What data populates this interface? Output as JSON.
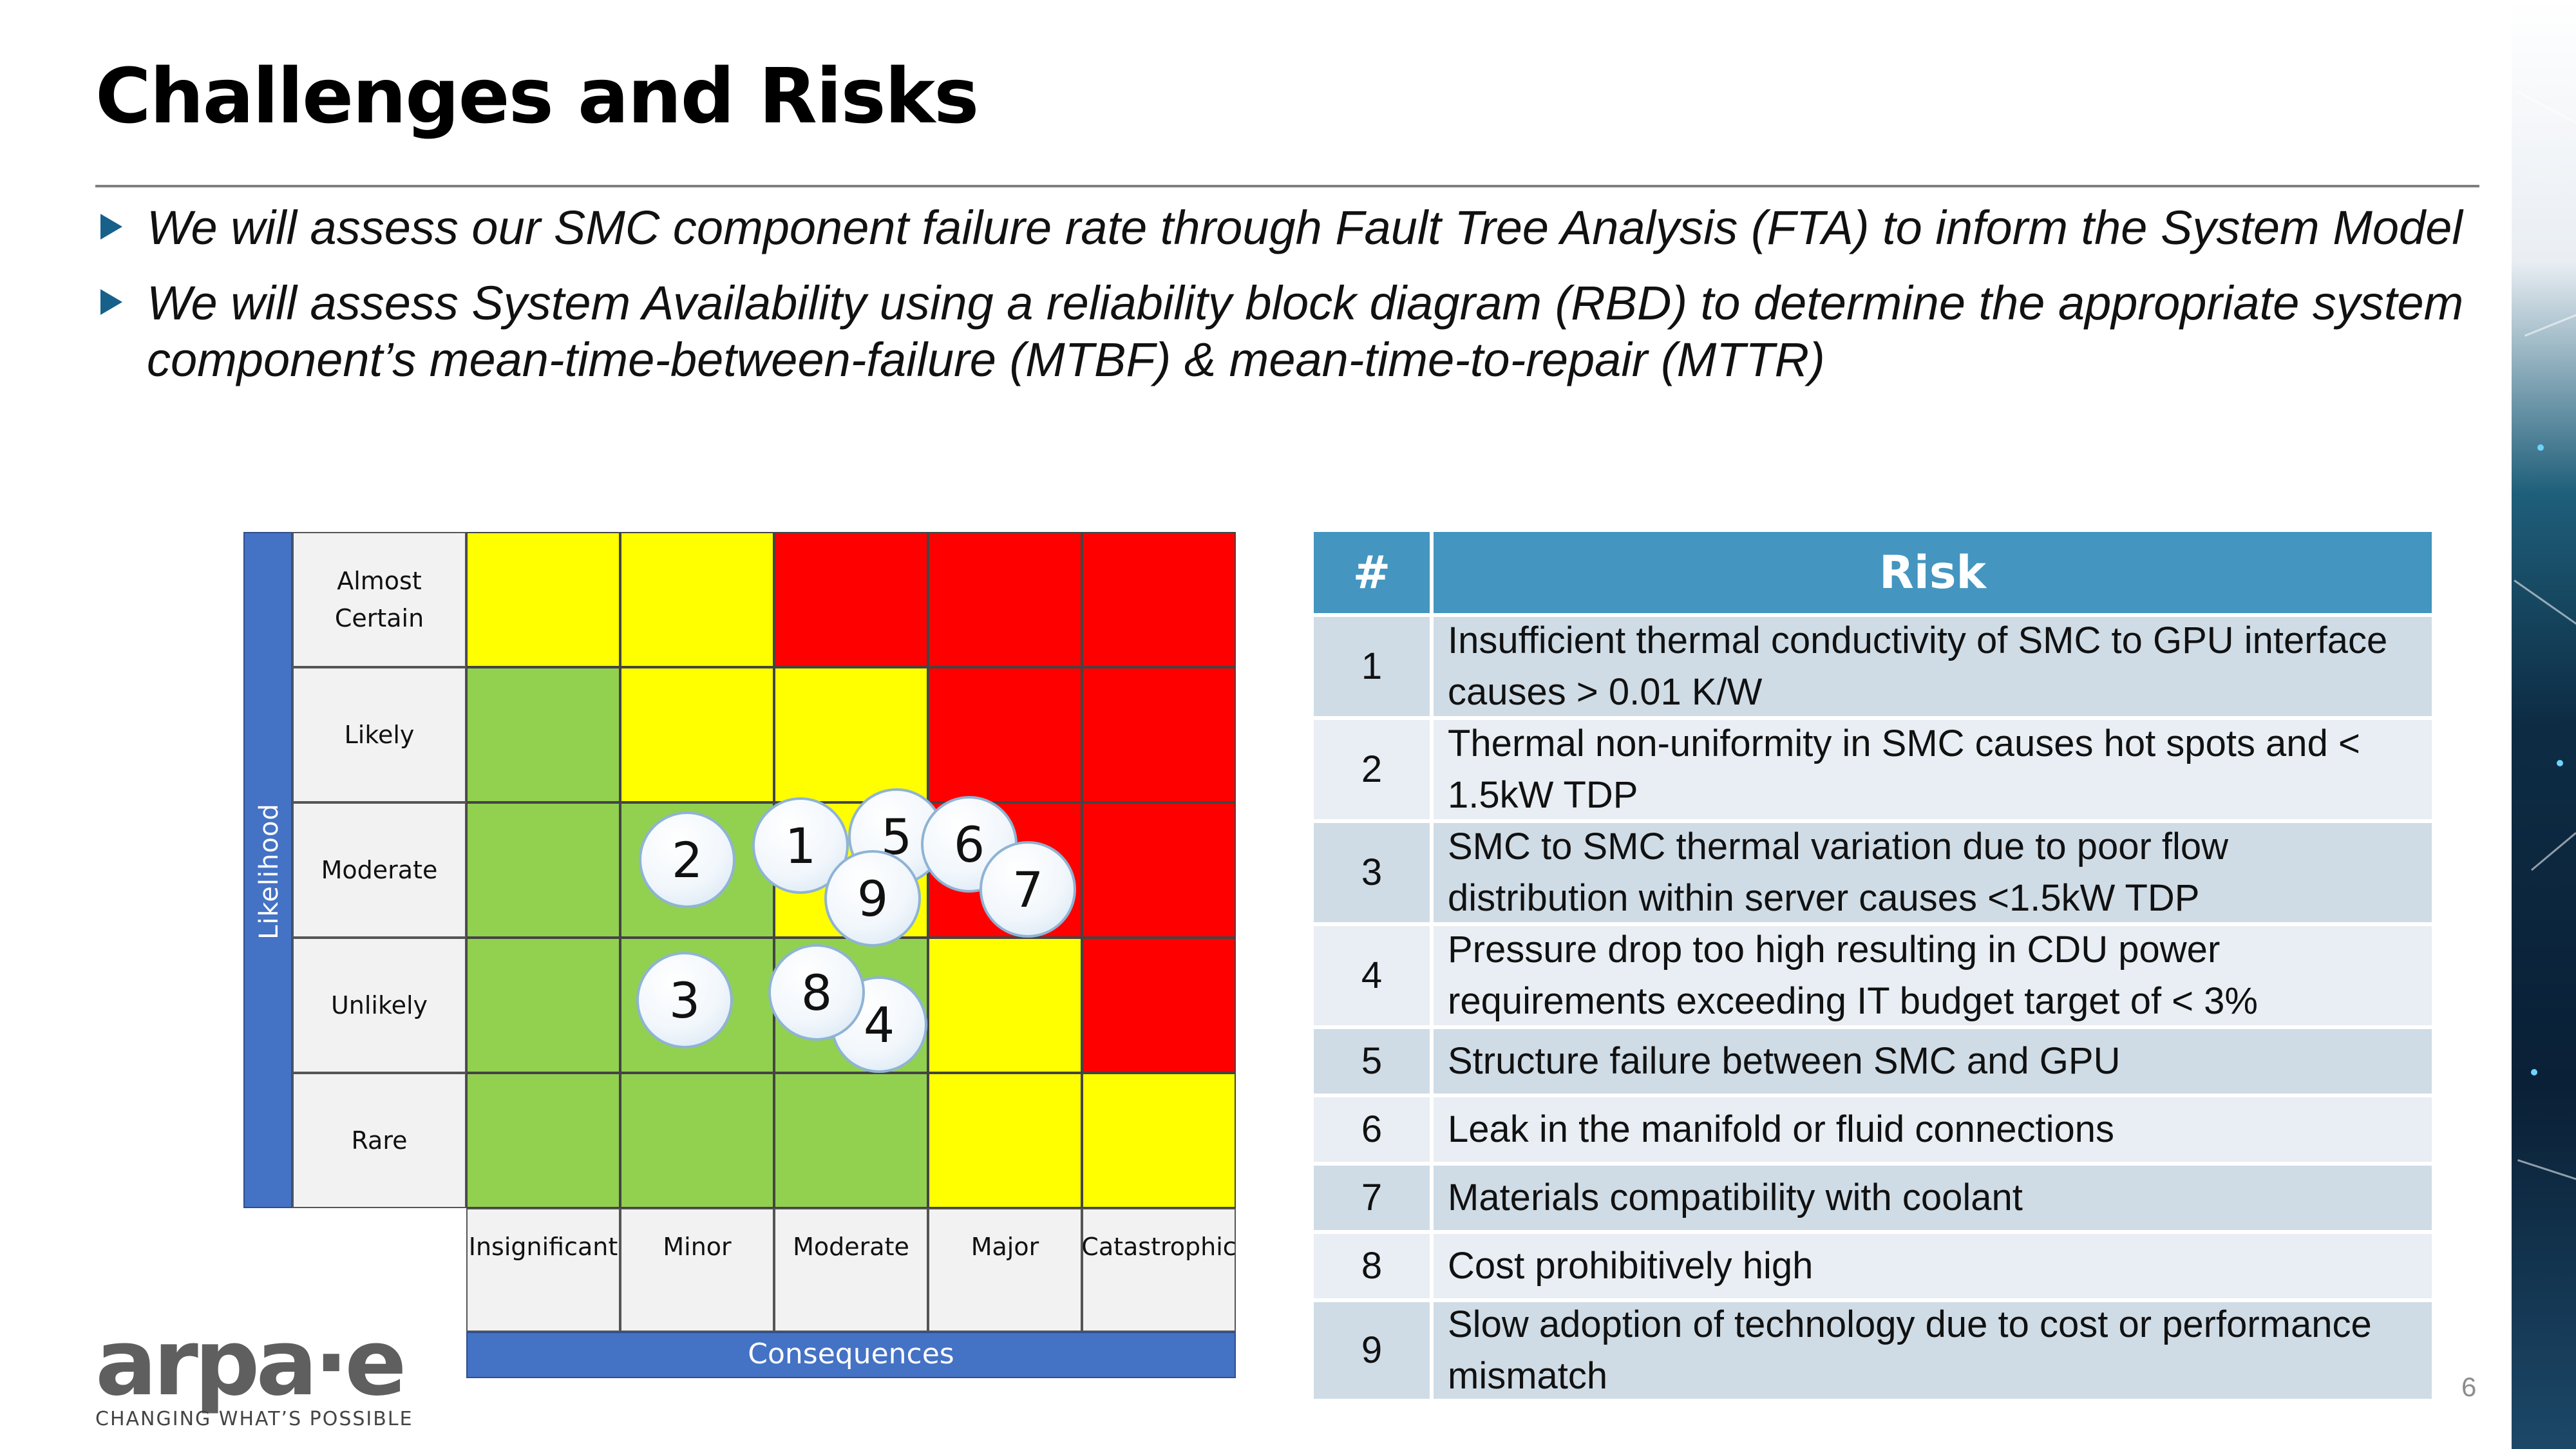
{
  "slide": {
    "title": "Challenges and Risks",
    "bullets": [
      "We will assess our SMC component failure rate through Fault Tree Analysis (FTA) to inform the System Model",
      "We will assess System Availability using a reliability block diagram (RBD) to determine the appropriate system component’s mean-time-between-failure (MTBF) & mean-time-to-repair (MTTR)"
    ],
    "page_number": "6"
  },
  "matrix": {
    "y_axis_label": "Likelihood",
    "x_axis_label": "Consequences",
    "likelihood_levels": [
      "Almost Certain",
      "Likely",
      "Moderate",
      "Unlikely",
      "Rare"
    ],
    "consequence_levels": [
      "Insignificant",
      "Minor",
      "Moderate",
      "Major",
      "Catastrophic"
    ],
    "cell_colors": [
      [
        "yellow",
        "yellow",
        "red",
        "red",
        "red"
      ],
      [
        "green",
        "yellow",
        "yellow",
        "red",
        "red"
      ],
      [
        "green",
        "green",
        "yellow",
        "red",
        "red"
      ],
      [
        "green",
        "green",
        "green",
        "yellow",
        "red"
      ],
      [
        "green",
        "green",
        "green",
        "yellow",
        "yellow"
      ]
    ],
    "color_values": {
      "yellow": "#ffff00",
      "red": "#ff0000",
      "green": "#92d050"
    },
    "risks_plotted": [
      {
        "id": "1",
        "likelihood": "Moderate",
        "consequence": "Moderate"
      },
      {
        "id": "2",
        "likelihood": "Moderate",
        "consequence": "Minor"
      },
      {
        "id": "3",
        "likelihood": "Unlikely",
        "consequence": "Minor"
      },
      {
        "id": "4",
        "likelihood": "Unlikely",
        "consequence": "Moderate"
      },
      {
        "id": "5",
        "likelihood": "Moderate",
        "consequence": "Moderate"
      },
      {
        "id": "6",
        "likelihood": "Moderate",
        "consequence": "Major"
      },
      {
        "id": "7",
        "likelihood": "Moderate",
        "consequence": "Major"
      },
      {
        "id": "8",
        "likelihood": "Unlikely",
        "consequence": "Moderate"
      },
      {
        "id": "9",
        "likelihood": "Moderate",
        "consequence": "Moderate"
      }
    ]
  },
  "risk_table": {
    "headers": [
      "#",
      "Risk"
    ],
    "rows": [
      {
        "num": "1",
        "risk": "Insufficient thermal conductivity of SMC to GPU interface causes > 0.01 K/W"
      },
      {
        "num": "2",
        "risk": "Thermal non-uniformity in SMC causes hot spots and < 1.5kW TDP"
      },
      {
        "num": "3",
        "risk": "SMC to SMC thermal variation due to poor flow distribution within server causes <1.5kW TDP"
      },
      {
        "num": "4",
        "risk": "Pressure drop too high resulting in CDU power requirements exceeding IT budget target of < 3%"
      },
      {
        "num": "5",
        "risk": "Structure failure between SMC and GPU"
      },
      {
        "num": "6",
        "risk": "Leak in the manifold or fluid connections"
      },
      {
        "num": "7",
        "risk": "Materials compatibility with coolant"
      },
      {
        "num": "8",
        "risk": "Cost prohibitively high"
      },
      {
        "num": "9",
        "risk": "Slow adoption of technology due to cost or performance mismatch"
      }
    ]
  },
  "logo": {
    "text": "arpa·e",
    "tagline": "CHANGING WHAT’S POSSIBLE"
  },
  "colors": {
    "accent_blue": "#4472c4",
    "table_header": "#4495bf",
    "bullet_marker": "#17608a"
  }
}
